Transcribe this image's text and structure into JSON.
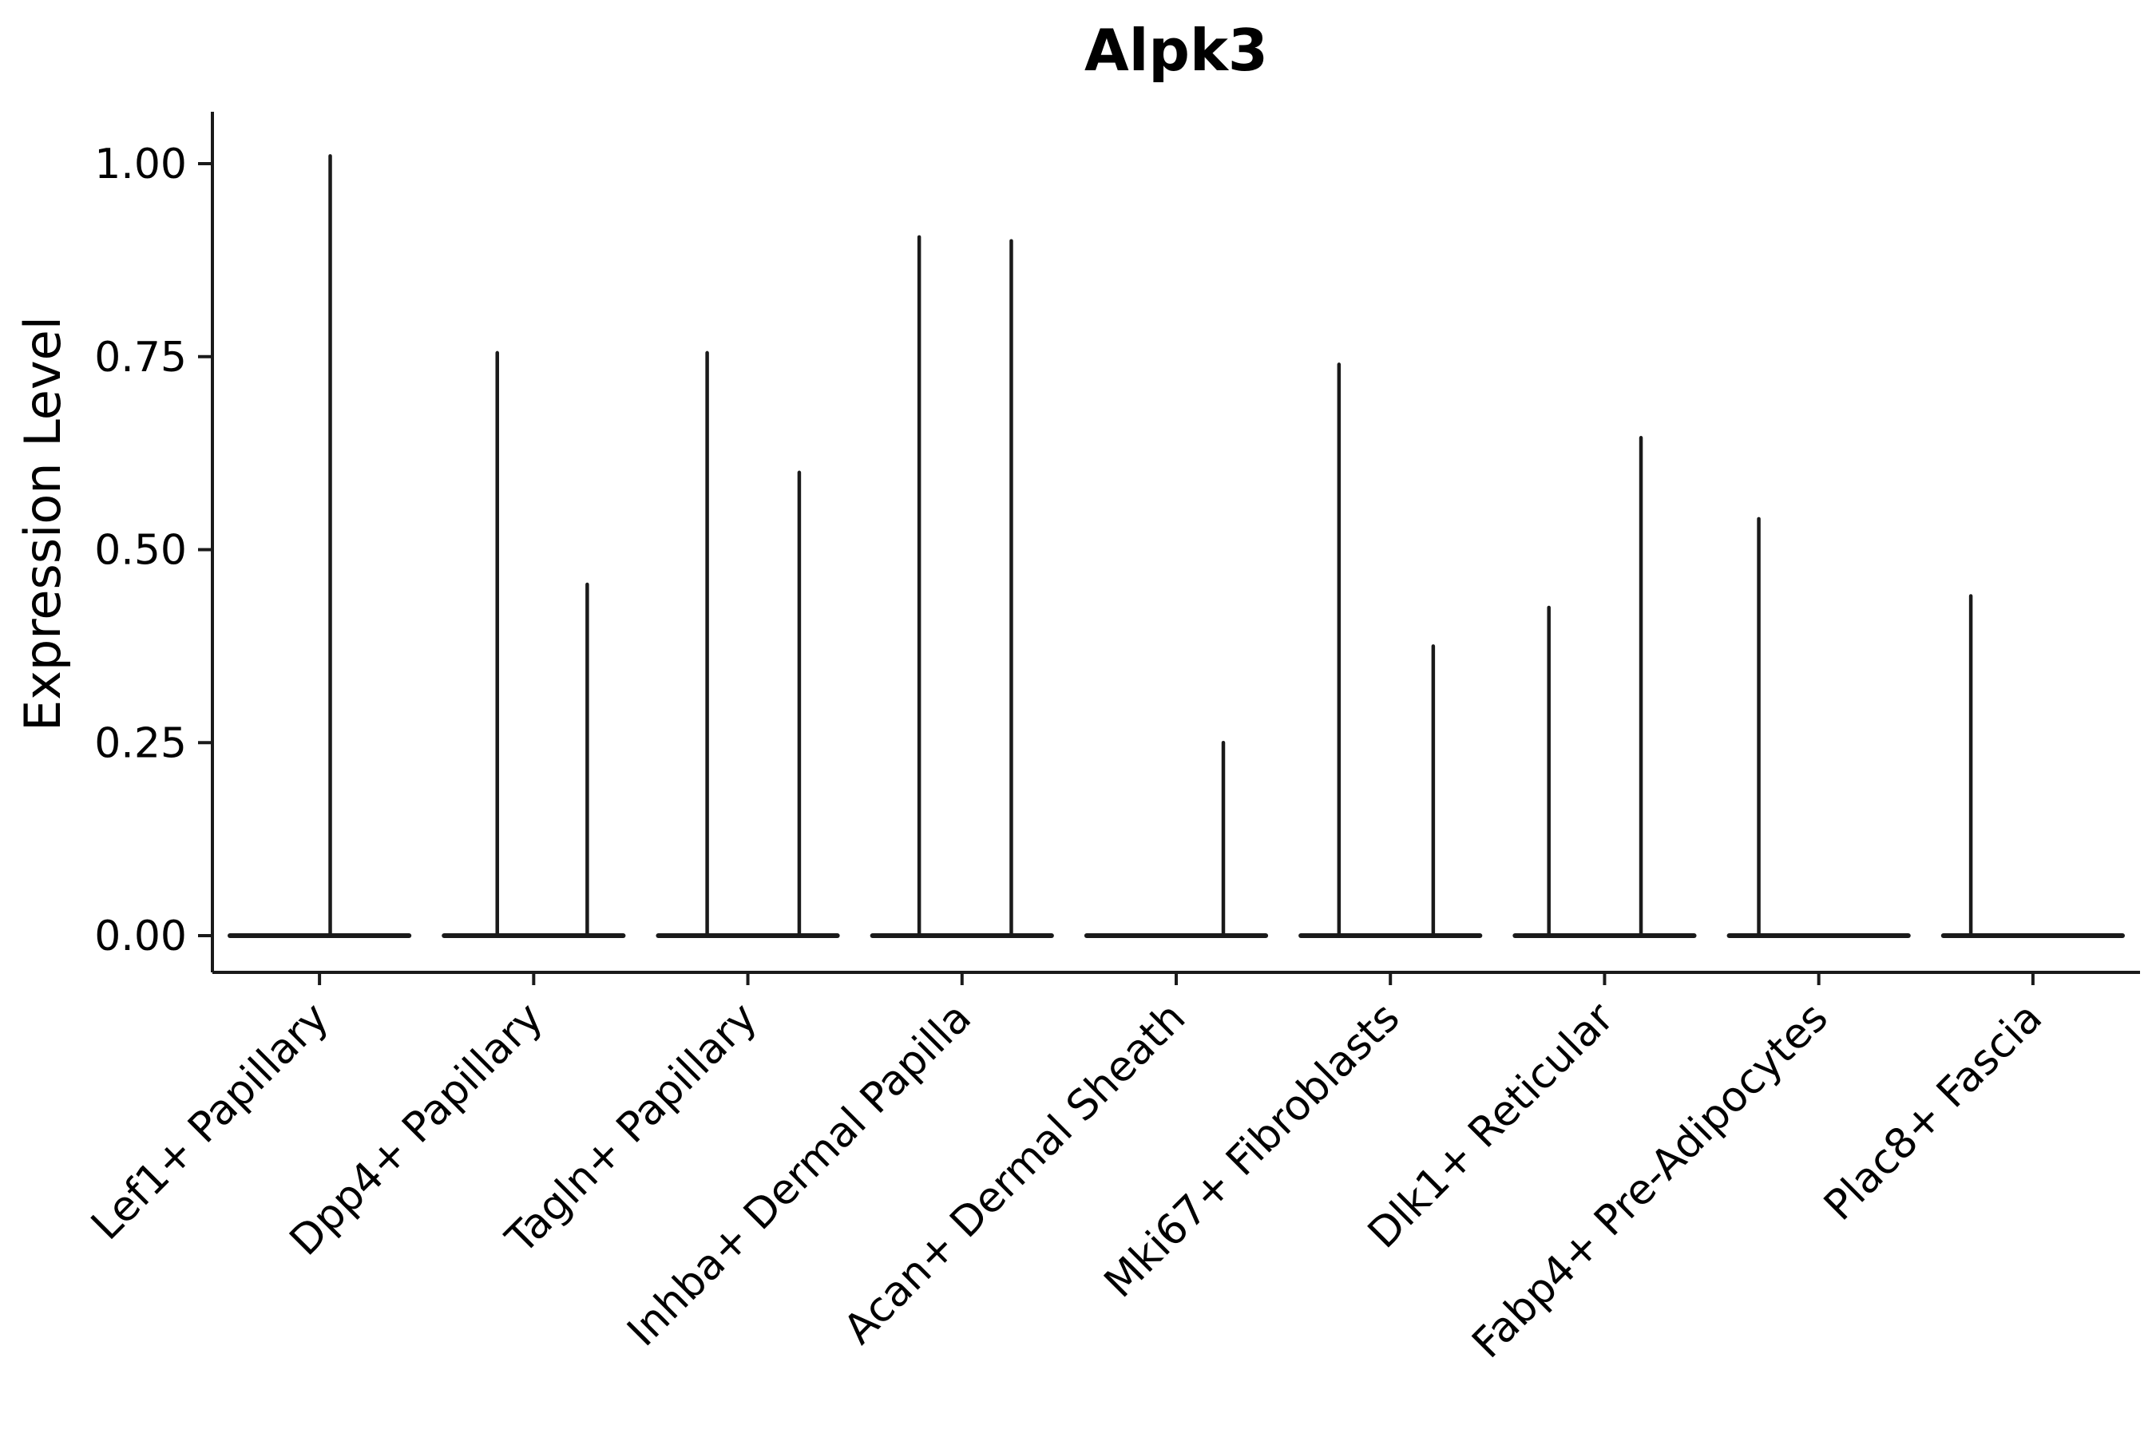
{
  "chart_data": {
    "type": "violin",
    "title": "Alpk3",
    "ylabel": "Expression Level",
    "xlabel": "",
    "ylim": [
      0,
      1.07
    ],
    "grid": false,
    "legend": "none",
    "colors": {
      "line": "#1a1a1a",
      "text": "#000000",
      "background": "#ffffff"
    },
    "yticks": [
      {
        "label": "1.00",
        "value": 1.0
      },
      {
        "label": "0.75",
        "value": 0.75
      },
      {
        "label": "0.50",
        "value": 0.5
      },
      {
        "label": "0.25",
        "value": 0.25
      },
      {
        "label": "0.00",
        "value": 0.0
      }
    ],
    "categories": [
      "Lef1+ Papillary",
      "Dpp4+ Papillary",
      "Tagln+ Papillary",
      "Inhba+ Dermal Papilla",
      "Acan+ Dermal Sheath",
      "Mki67+ Fibroblasts",
      "Dlk1+ Reticular",
      "Fabp4+ Pre-Adipocytes",
      "Plac8+ Fascia"
    ],
    "groups": [
      {
        "category": "Lef1+ Papillary",
        "baseline_value": 0.0,
        "spikes": [
          {
            "rel": 0.55,
            "max": 1.01
          }
        ]
      },
      {
        "category": "Dpp4+ Papillary",
        "baseline_value": 0.0,
        "spikes": [
          {
            "rel": 0.33,
            "max": 0.755
          },
          {
            "rel": 0.75,
            "max": 0.455
          }
        ]
      },
      {
        "category": "Tagln+ Papillary",
        "baseline_value": 0.0,
        "spikes": [
          {
            "rel": 0.31,
            "max": 0.755
          },
          {
            "rel": 0.74,
            "max": 0.6
          }
        ]
      },
      {
        "category": "Inhba+ Dermal Papilla",
        "baseline_value": 0.0,
        "spikes": [
          {
            "rel": 0.3,
            "max": 0.905
          },
          {
            "rel": 0.73,
            "max": 0.9
          }
        ]
      },
      {
        "category": "Acan+ Dermal Sheath",
        "baseline_value": 0.0,
        "spikes": [
          {
            "rel": 0.72,
            "max": 0.25
          }
        ]
      },
      {
        "category": "Mki67+ Fibroblasts",
        "baseline_value": 0.0,
        "spikes": [
          {
            "rel": 0.26,
            "max": 0.74
          },
          {
            "rel": 0.7,
            "max": 0.375
          }
        ]
      },
      {
        "category": "Dlk1+ Reticular",
        "baseline_value": 0.0,
        "spikes": [
          {
            "rel": 0.24,
            "max": 0.425
          },
          {
            "rel": 0.67,
            "max": 0.645
          }
        ]
      },
      {
        "category": "Fabp4+ Pre-Adipocytes",
        "baseline_value": 0.0,
        "spikes": [
          {
            "rel": 0.22,
            "max": 0.54
          }
        ]
      },
      {
        "category": "Plac8+ Fascia",
        "baseline_value": 0.0,
        "spikes": [
          {
            "rel": 0.21,
            "max": 0.44
          }
        ]
      }
    ]
  }
}
